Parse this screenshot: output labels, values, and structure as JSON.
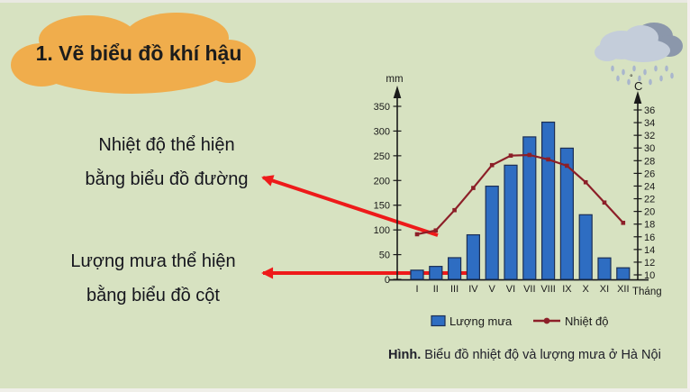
{
  "slide": {
    "title": "1. Vẽ biểu đồ khí hậu"
  },
  "annotations": {
    "temperature": {
      "line1": "Nhiệt độ thể hiện",
      "line2": "bằng biểu đồ đường"
    },
    "rainfall": {
      "line1": "Lượng mưa thể hiện",
      "line2": "bằng biểu đồ cột"
    }
  },
  "icons": {
    "title_shape": "cloud-callout",
    "weather": "rain-cloud-icon"
  },
  "colors": {
    "background": "#d7e2c1",
    "title_cloud": "#f0ad4c",
    "arrow": "#ee1a1a",
    "axis": "#1a1a1a"
  },
  "chart_data": {
    "type": "combo",
    "categories": [
      "I",
      "II",
      "III",
      "IV",
      "V",
      "VI",
      "VII",
      "VIII",
      "IX",
      "X",
      "XI",
      "XII"
    ],
    "series": [
      {
        "name": "Lượng mưa",
        "type": "bar",
        "axis": "left",
        "unit": "mm",
        "color": "#2e6dc2",
        "border_color": "#1c2f55",
        "values": [
          18.6,
          26.2,
          43.8,
          90.1,
          188.5,
          230.9,
          288.2,
          318.0,
          265.4,
          130.7,
          43.4,
          23.4
        ]
      },
      {
        "name": "Nhiệt độ",
        "type": "line",
        "axis": "right",
        "unit": "°C",
        "color": "#8c1f28",
        "values": [
          16.4,
          17.0,
          20.2,
          23.7,
          27.3,
          28.8,
          28.9,
          28.2,
          27.2,
          24.6,
          21.4,
          18.2
        ]
      }
    ],
    "left_axis": {
      "label": "mm",
      "min": 0,
      "max": 350,
      "tick_step": 50
    },
    "right_axis": {
      "label": "°C",
      "min": 10,
      "max": 36,
      "tick_step": 2
    },
    "x_axis_label": "Tháng",
    "legend": [
      "Lượng mưa",
      "Nhiệt độ"
    ],
    "legend_position": "bottom",
    "grid": false,
    "caption_bold": "Hình.",
    "caption_rest": " Biểu đồ nhiệt độ và lượng mưa ở Hà Nội"
  }
}
